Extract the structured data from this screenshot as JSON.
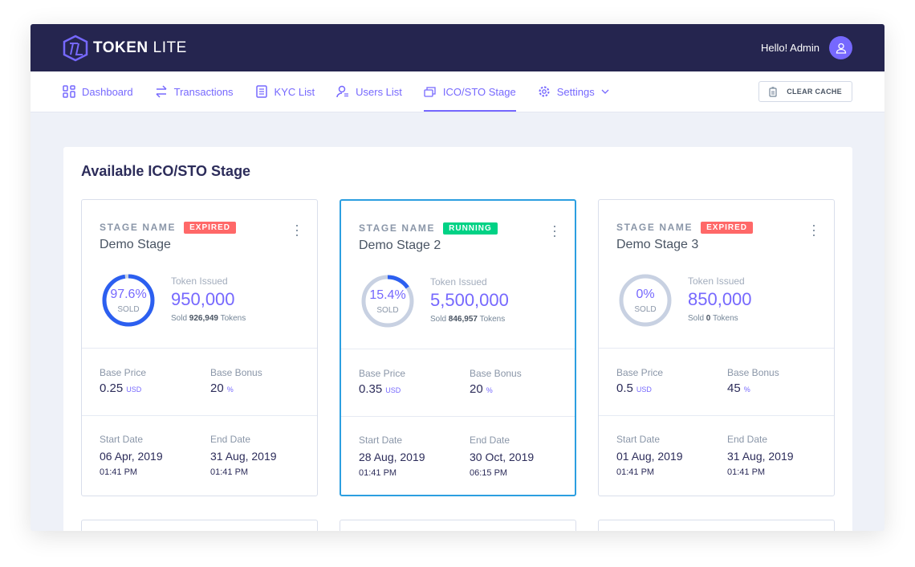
{
  "header": {
    "logo": {
      "bold": "TOKEN",
      "light": "LITE"
    },
    "greeting": "Hello! Admin",
    "accent": "#7668fe",
    "bg": "#25254f"
  },
  "nav": {
    "items": [
      {
        "label": "Dashboard",
        "icon": "grid-icon"
      },
      {
        "label": "Transactions",
        "icon": "arrows-icon"
      },
      {
        "label": "KYC List",
        "icon": "document-icon"
      },
      {
        "label": "Users List",
        "icon": "user-icon"
      },
      {
        "label": "ICO/STO Stage",
        "icon": "coins-icon",
        "active": true
      },
      {
        "label": "Settings",
        "icon": "gear-icon"
      }
    ],
    "clear_cache": "CLEAR CACHE"
  },
  "panel": {
    "title": "Available ICO/STO Stage"
  },
  "stage_label": "STAGE NAME",
  "token_issued_label": "Token Issued",
  "sold_word": "Sold",
  "tokens_word": "Tokens",
  "sold_caption": "SOLD",
  "base_price_label": "Base Price",
  "base_bonus_label": "Base Bonus",
  "start_date_label": "Start Date",
  "end_date_label": "End Date",
  "usd": "USD",
  "percent": "%",
  "stages": [
    {
      "name": "Demo Stage",
      "status": "EXPIRED",
      "status_color": "#ff6868",
      "sold_pct": "97.6%",
      "sold_frac": 0.976,
      "issued": "950,000",
      "sold": "926,949",
      "price": "0.25",
      "bonus": "20",
      "start_date": "06 Apr, 2019",
      "start_time": "01:41 PM",
      "end_date": "31 Aug, 2019",
      "end_time": "01:41 PM"
    },
    {
      "name": "Demo Stage 2",
      "status": "RUNNING",
      "status_color": "#00d285",
      "sold_pct": "15.4%",
      "sold_frac": 0.154,
      "issued": "5,500,000",
      "sold": "846,957",
      "price": "0.35",
      "bonus": "20",
      "start_date": "28 Aug, 2019",
      "start_time": "01:41 PM",
      "end_date": "30 Oct, 2019",
      "end_time": "06:15 PM"
    },
    {
      "name": "Demo Stage 3",
      "status": "EXPIRED",
      "status_color": "#ff6868",
      "sold_pct": "0%",
      "sold_frac": 0,
      "issued": "850,000",
      "sold": "0",
      "price": "0.5",
      "bonus": "45",
      "start_date": "01 Aug, 2019",
      "start_time": "01:41 PM",
      "end_date": "31 Aug, 2019",
      "end_time": "01:41 PM"
    }
  ]
}
